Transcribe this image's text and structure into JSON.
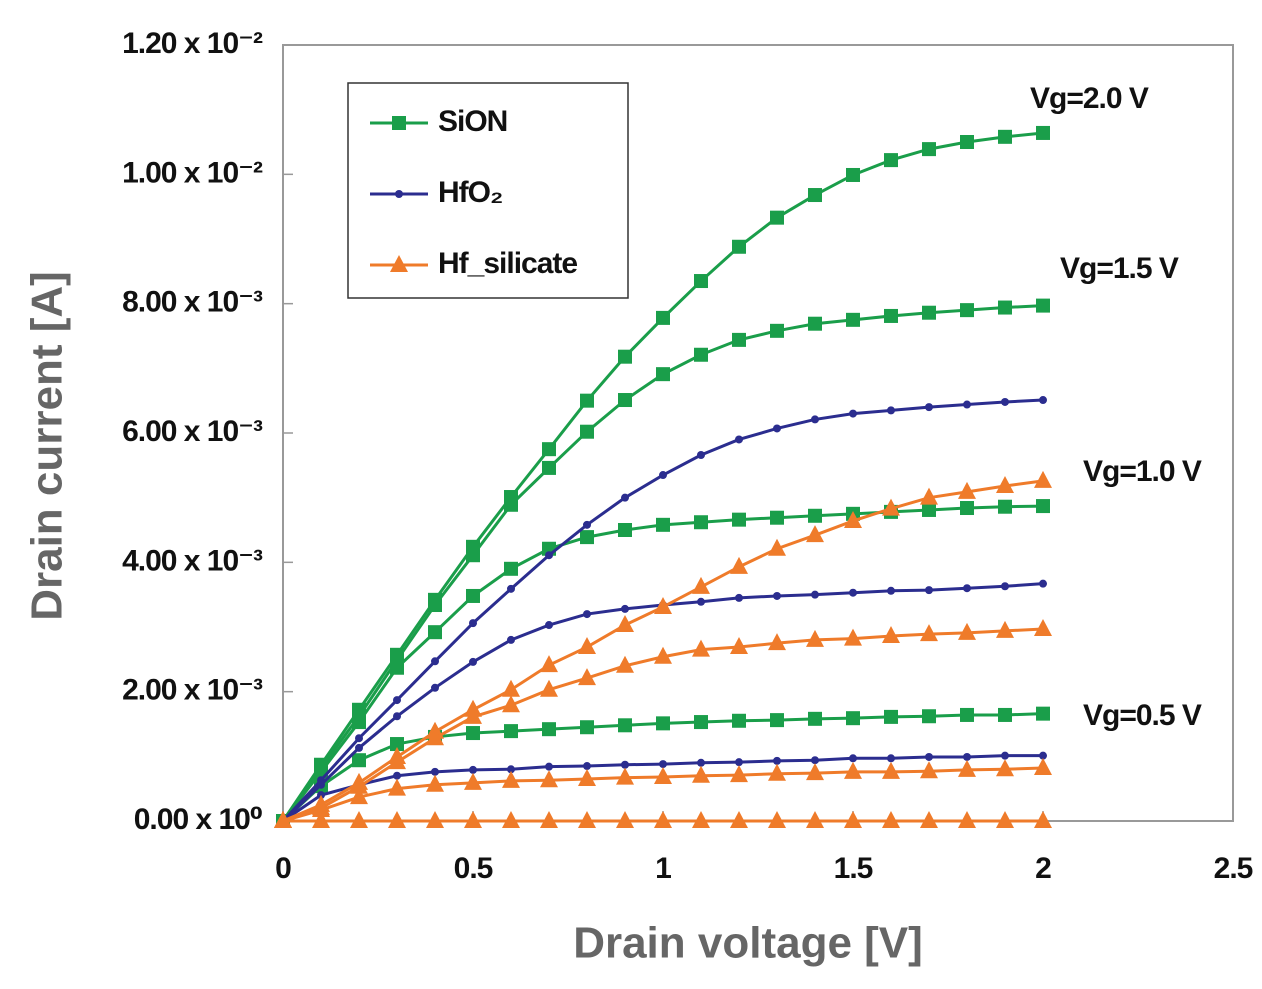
{
  "chart_data": {
    "type": "line",
    "xlabel": "Drain voltage [V]",
    "ylabel": "Drain current [A]",
    "x": [
      0,
      0.1,
      0.2,
      0.3,
      0.4,
      0.5,
      0.6,
      0.7,
      0.8,
      0.9,
      1.0,
      1.1,
      1.2,
      1.3,
      1.4,
      1.5,
      1.6,
      1.7,
      1.8,
      1.9,
      2.0
    ],
    "xlim": [
      0,
      2.5
    ],
    "xticks": [
      0,
      0.5,
      1,
      1.5,
      2,
      2.5
    ],
    "ylim": [
      0,
      0.012
    ],
    "yticks": [
      {
        "value": 0,
        "label": "0.00 x 10⁰"
      },
      {
        "value": 0.002,
        "label": "2.00 x 10⁻³"
      },
      {
        "value": 0.004,
        "label": "4.00 x 10⁻³"
      },
      {
        "value": 0.006,
        "label": "6.00 x 10⁻³"
      },
      {
        "value": 0.008,
        "label": "8.00 x 10⁻³"
      },
      {
        "value": 0.01,
        "label": "1.00 x 10⁻²"
      },
      {
        "value": 0.012,
        "label": "1.20 x 10⁻²"
      }
    ],
    "grid": false,
    "legend": "upper left",
    "annotations": [
      "Vg=2.0 V",
      "Vg=1.5 V",
      "Vg=1.0 V",
      "Vg=0.5 V"
    ],
    "series": [
      {
        "name": "SiON",
        "color": "#1a9e4a",
        "marker": "square",
        "curves": [
          [
            0,
            0.00087,
            0.00172,
            0.00257,
            0.00342,
            0.00424,
            0.00501,
            0.00575,
            0.0065,
            0.00718,
            0.00778,
            0.00835,
            0.00888,
            0.00933,
            0.00968,
            0.00999,
            0.01022,
            0.01039,
            0.0105,
            0.01058,
            0.01064
          ],
          [
            0,
            0.00082,
            0.00162,
            0.00249,
            0.00334,
            0.00411,
            0.00489,
            0.00546,
            0.00602,
            0.00651,
            0.00691,
            0.00721,
            0.00744,
            0.00758,
            0.00769,
            0.00775,
            0.00781,
            0.00786,
            0.0079,
            0.00794,
            0.00797
          ],
          [
            0,
            0.00076,
            0.00153,
            0.00237,
            0.00292,
            0.00348,
            0.0039,
            0.00421,
            0.00439,
            0.0045,
            0.00458,
            0.00462,
            0.00466,
            0.00469,
            0.00472,
            0.00475,
            0.00478,
            0.00481,
            0.00484,
            0.00486,
            0.00487
          ],
          [
            0,
            0.00054,
            0.00094,
            0.00119,
            0.0013,
            0.00136,
            0.00139,
            0.00142,
            0.00145,
            0.00148,
            0.00151,
            0.00153,
            0.00155,
            0.00156,
            0.00158,
            0.00159,
            0.00161,
            0.00162,
            0.00164,
            0.00164,
            0.00166
          ]
        ]
      },
      {
        "name": "HfO₂",
        "color": "#2b2d8f",
        "marker": "circle",
        "curves": [
          [
            0,
            0.00063,
            0.00128,
            0.00187,
            0.00247,
            0.00306,
            0.00359,
            0.00411,
            0.00458,
            0.005,
            0.00535,
            0.00566,
            0.0059,
            0.00607,
            0.00621,
            0.0063,
            0.00635,
            0.0064,
            0.00644,
            0.00648,
            0.00651
          ],
          [
            0,
            0.00056,
            0.00113,
            0.00162,
            0.00206,
            0.00246,
            0.0028,
            0.00303,
            0.0032,
            0.00328,
            0.00334,
            0.00339,
            0.00345,
            0.00348,
            0.0035,
            0.00353,
            0.00356,
            0.00357,
            0.0036,
            0.00363,
            0.00367
          ],
          [
            0,
            0.0004,
            0.00056,
            0.0007,
            0.00076,
            0.00079,
            0.0008,
            0.00084,
            0.00085,
            0.00087,
            0.00088,
            0.0009,
            0.00091,
            0.00093,
            0.00094,
            0.00097,
            0.00097,
            0.00099,
            0.00099,
            0.00101,
            0.00101
          ]
        ]
      },
      {
        "name": "Hf_silicate",
        "color": "#ef7b2a",
        "marker": "triangle",
        "curves": [
          [
            0,
            0.00025,
            0.00059,
            0.00099,
            0.00138,
            0.00172,
            0.00203,
            0.00241,
            0.00269,
            0.00303,
            0.00331,
            0.00362,
            0.00393,
            0.00421,
            0.00442,
            0.00464,
            0.00483,
            0.005,
            0.00509,
            0.00518,
            0.00526
          ],
          [
            0,
            0.0002,
            0.00053,
            0.00091,
            0.00128,
            0.00161,
            0.00179,
            0.00203,
            0.00221,
            0.0024,
            0.00254,
            0.00265,
            0.00269,
            0.00275,
            0.0028,
            0.00282,
            0.00286,
            0.00289,
            0.00291,
            0.00294,
            0.00297
          ],
          [
            0,
            0.00017,
            0.00037,
            0.0005,
            0.00056,
            0.00059,
            0.00062,
            0.00063,
            0.00065,
            0.00067,
            0.00068,
            0.0007,
            0.00071,
            0.00073,
            0.00074,
            0.00076,
            0.00076,
            0.00077,
            0.00079,
            0.0008,
            0.00082
          ],
          [
            0,
            0,
            0,
            0,
            0,
            0,
            0,
            0,
            0,
            0,
            0,
            0,
            0,
            0,
            0,
            0,
            0,
            0,
            0,
            0,
            0
          ]
        ]
      }
    ]
  }
}
